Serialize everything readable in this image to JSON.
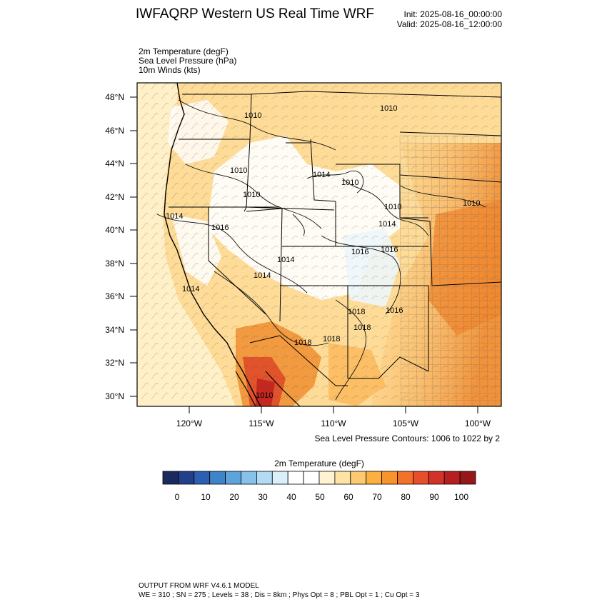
{
  "header": {
    "title": "IWFAQRP Western US Real Time WRF",
    "init": "Init: 2025-08-16_00:00:00",
    "valid": "Valid: 2025-08-16_12:00:00"
  },
  "variables": [
    "2m Temperature   (degF)",
    "Sea Level Pressure   (hPa)",
    "10m Winds   (kts)"
  ],
  "axes": {
    "lat_labels": [
      "48°N",
      "46°N",
      "44°N",
      "42°N",
      "40°N",
      "38°N",
      "36°N",
      "34°N",
      "32°N",
      "30°N"
    ],
    "lon_labels": [
      "120°W",
      "115°W",
      "110°W",
      "105°W",
      "100°W"
    ]
  },
  "contour_note": "Sea Level Pressure Contours: 1006 to 1022 by 2",
  "pressure_labels": [
    "1010",
    "1010",
    "1010",
    "1014",
    "1010",
    "1010",
    "1010",
    "1010",
    "1014",
    "1014",
    "1016",
    "1014",
    "1014",
    "1014",
    "1016",
    "1016",
    "1018",
    "1018",
    "1018",
    "1018",
    "1016",
    "1010"
  ],
  "colorbar": {
    "title": "2m Temperature  (degF)",
    "labels": [
      "0",
      "10",
      "20",
      "30",
      "40",
      "50",
      "60",
      "70",
      "80",
      "90",
      "100"
    ],
    "colors": [
      "#1b2a5e",
      "#233f8a",
      "#2c5fb0",
      "#3f83c9",
      "#5ea4db",
      "#86c2ea",
      "#b3dcf4",
      "#dbeffa",
      "#ffffff",
      "#ffffff",
      "#fff3d2",
      "#fee3a6",
      "#fdca72",
      "#fbb040",
      "#f9932c",
      "#f3722a",
      "#e74e2b",
      "#d23227",
      "#b71e22",
      "#961719"
    ]
  },
  "footer": {
    "line1": "OUTPUT FROM WRF V4.6.1 MODEL",
    "line2": "WE = 310 ; SN = 275 ; Levels = 38 ; Dis = 8km ; Phys Opt = 8 ; PBL Opt = 1 ; Cu Opt = 3"
  }
}
